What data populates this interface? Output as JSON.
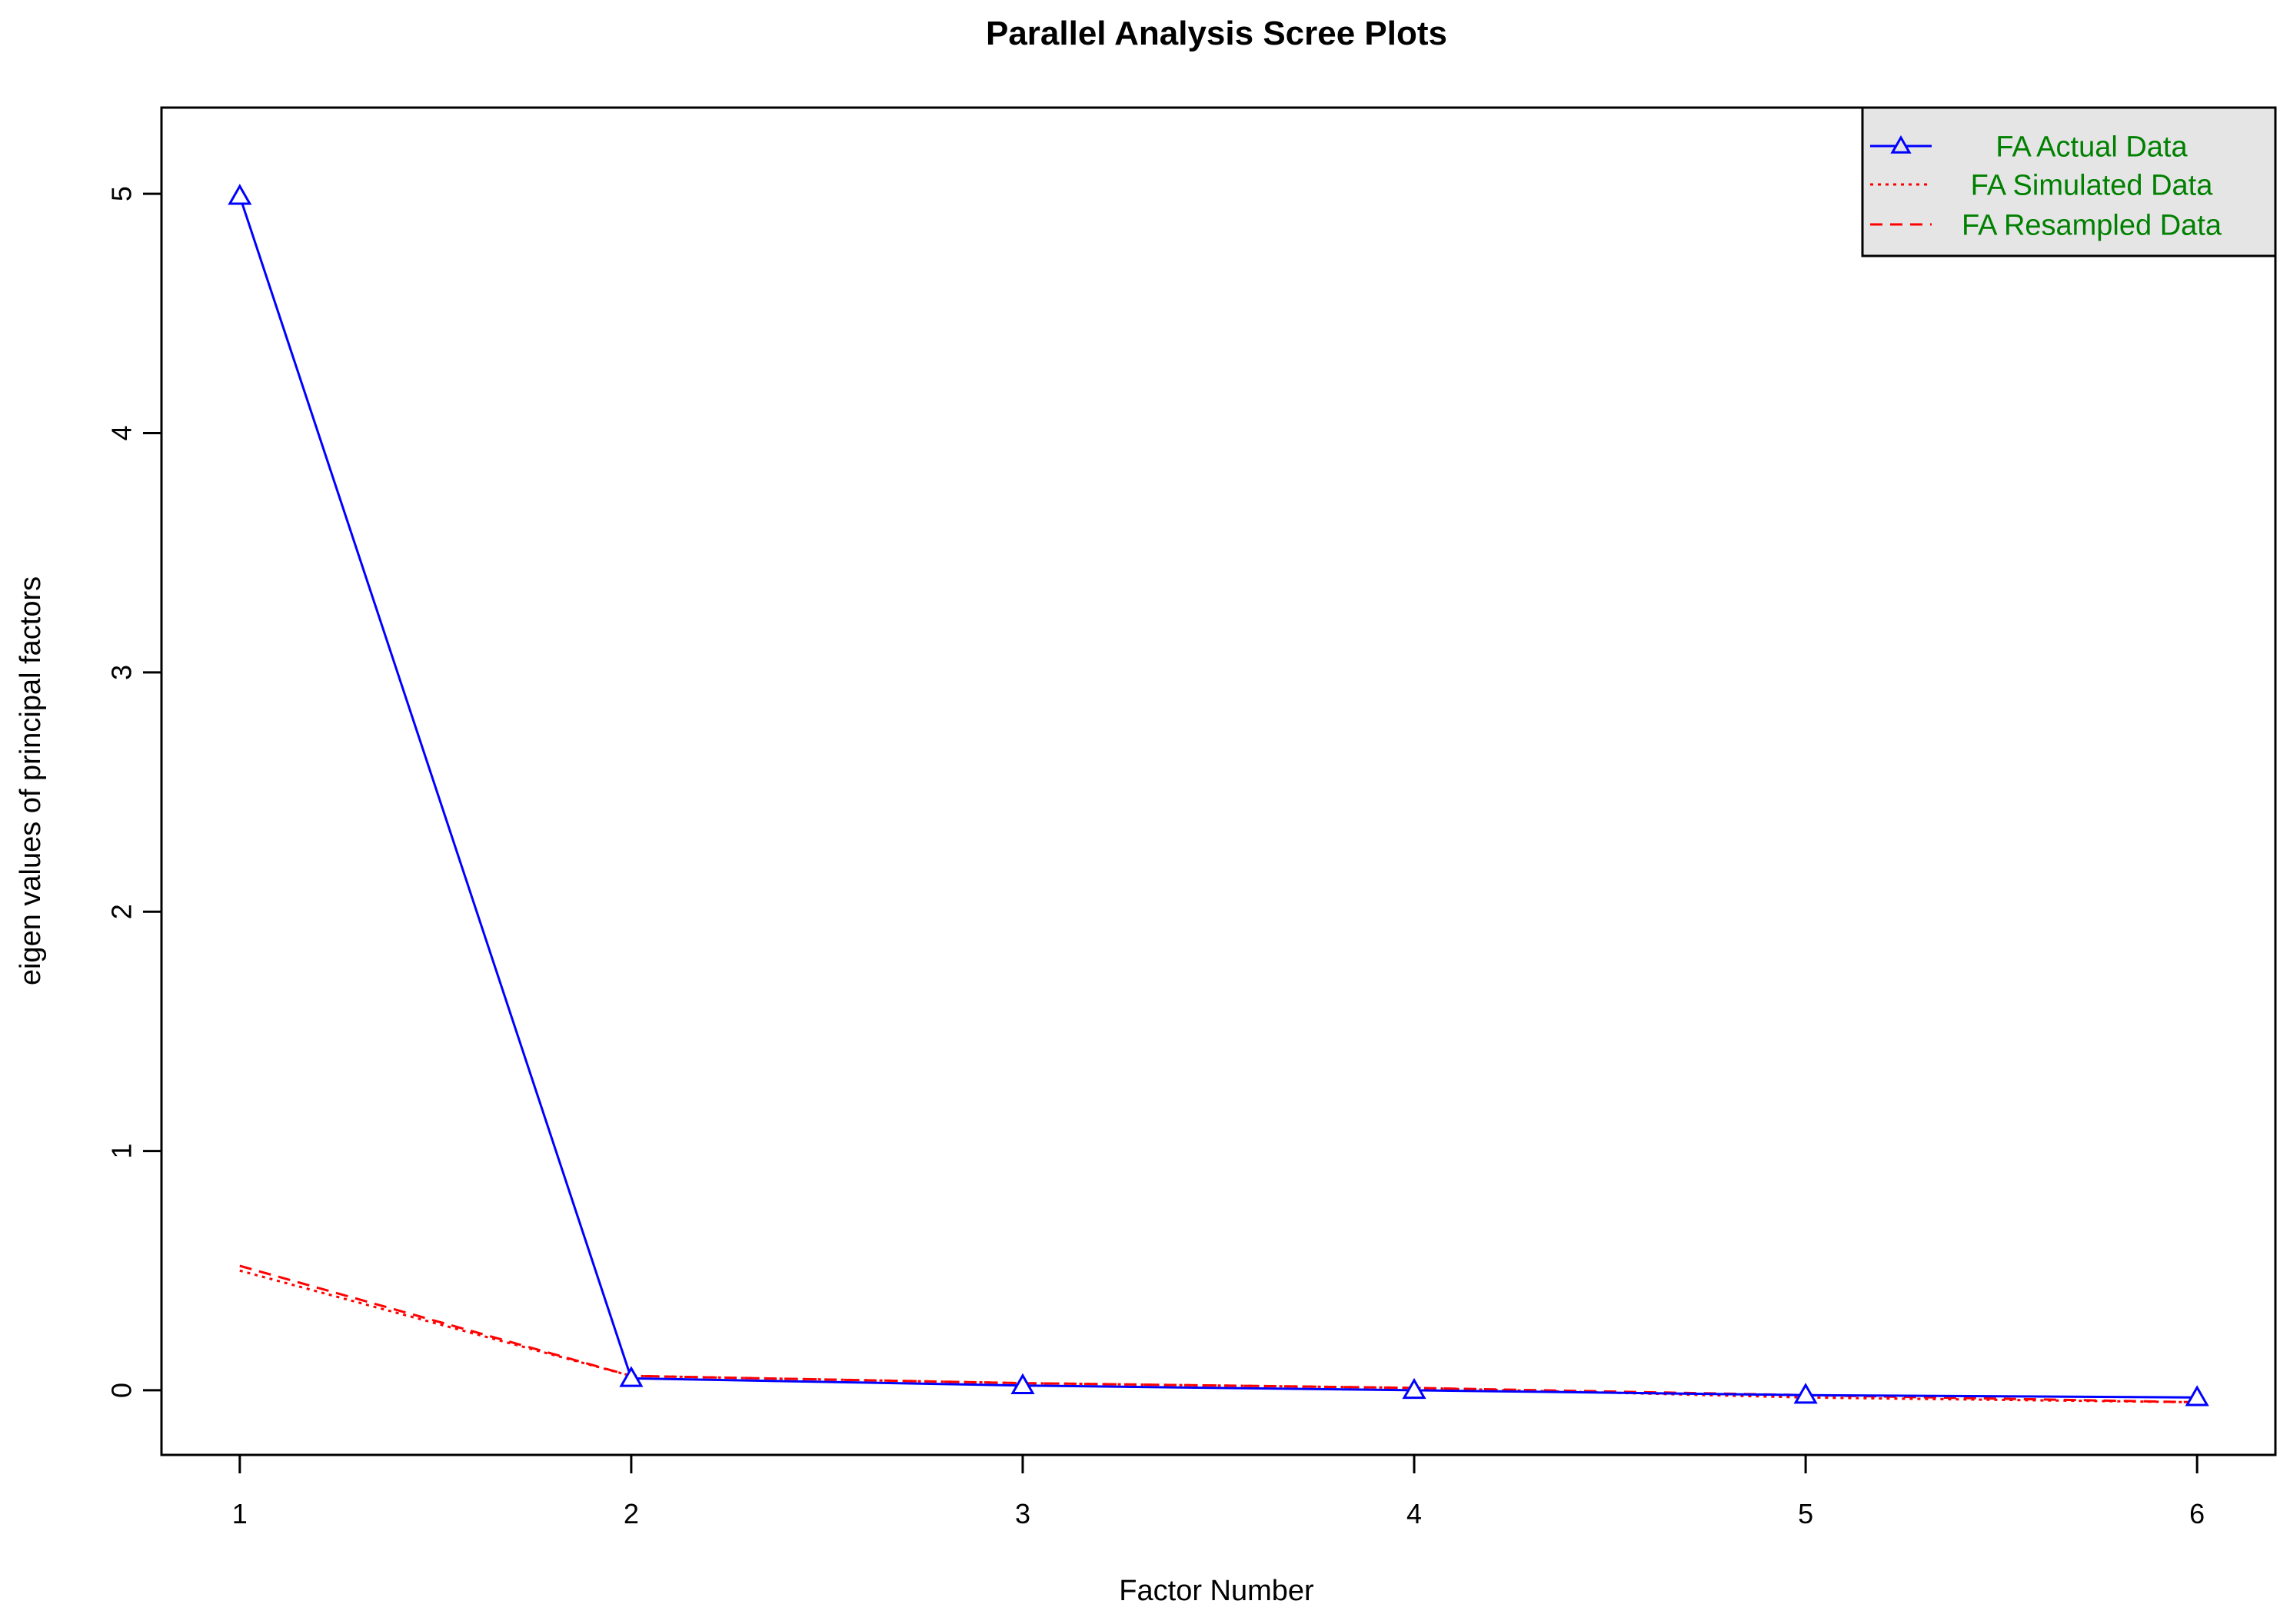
{
  "chart_data": {
    "type": "line",
    "title": "Parallel Analysis Scree Plots",
    "xlabel": "Factor Number",
    "ylabel": "eigen values of principal factors",
    "x": [
      1,
      2,
      3,
      4,
      5,
      6
    ],
    "xlim": [
      0.8,
      6.2
    ],
    "ylim": [
      -0.27,
      5.36
    ],
    "xticks": [
      "1",
      "2",
      "3",
      "4",
      "5",
      "6"
    ],
    "yticks": [
      "0",
      "1",
      "2",
      "3",
      "4",
      "5"
    ],
    "grid": false,
    "legend_position": "top-right",
    "colors": {
      "actual": "#0000ff",
      "simulated": "#ff0000",
      "resampled": "#ff0000",
      "legend_text": "#008000",
      "legend_bg": "#e5e5e5"
    },
    "series": [
      {
        "name": "FA  Actual Data",
        "style": "solid-triangle",
        "values": [
          4.99,
          0.05,
          0.02,
          0.0,
          -0.02,
          -0.03
        ]
      },
      {
        "name": "FA  Simulated Data",
        "style": "dotted",
        "values": [
          0.5,
          0.06,
          0.03,
          0.01,
          -0.03,
          -0.05
        ]
      },
      {
        "name": "FA  Resampled Data",
        "style": "dashed",
        "values": [
          0.52,
          0.06,
          0.03,
          0.01,
          -0.02,
          -0.05
        ]
      }
    ]
  }
}
